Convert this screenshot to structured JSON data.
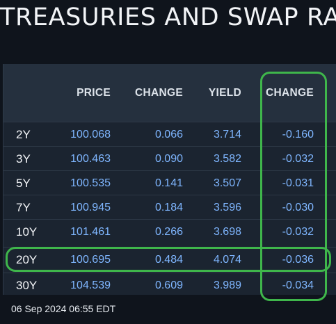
{
  "title": "TREASURIES AND SWAP RAT",
  "columns": {
    "price": "PRICE",
    "change": "CHANGE",
    "yield": "YIELD",
    "change2": "CHANGE"
  },
  "rows": [
    {
      "tenor": "2Y",
      "price": "100.068",
      "change": "0.066",
      "yield": "3.714",
      "change2": "-0.160"
    },
    {
      "tenor": "3Y",
      "price": "100.463",
      "change": "0.090",
      "yield": "3.582",
      "change2": "-0.032"
    },
    {
      "tenor": "5Y",
      "price": "100.535",
      "change": "0.141",
      "yield": "3.507",
      "change2": "-0.031"
    },
    {
      "tenor": "7Y",
      "price": "100.945",
      "change": "0.184",
      "yield": "3.596",
      "change2": "-0.030"
    },
    {
      "tenor": "10Y",
      "price": "101.461",
      "change": "0.266",
      "yield": "3.698",
      "change2": "-0.032"
    },
    {
      "tenor": "20Y",
      "price": "100.695",
      "change": "0.484",
      "yield": "4.074",
      "change2": "-0.036"
    },
    {
      "tenor": "30Y",
      "price": "104.539",
      "change": "0.609",
      "yield": "3.989",
      "change2": "-0.034"
    }
  ],
  "footer": "06 Sep 2024 06:55 EDT",
  "colors": {
    "background": "#0f141c",
    "value_text": "#7fb6ff",
    "highlight": "#3fb64b"
  }
}
